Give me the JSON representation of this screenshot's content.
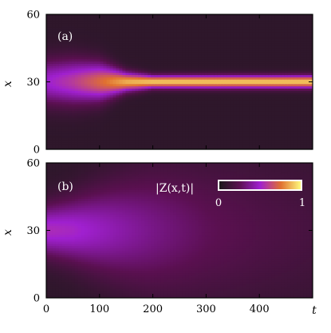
{
  "chart_data": [
    {
      "type": "heatmap",
      "panel_label": "(a)",
      "xlabel": "t",
      "ylabel": "x",
      "xlim": [
        0,
        500
      ],
      "ylim": [
        0,
        60
      ],
      "x_ticks": [
        "0",
        "100",
        "200",
        "300",
        "400"
      ],
      "y_ticks": [
        "0",
        "30",
        "60"
      ],
      "show_x_tick_labels": false,
      "colormap": [
        "#1a1a1a",
        "#5a1050",
        "#a020d0",
        "#e07030",
        "#ffff80"
      ],
      "field": {
        "description_values": "max |Z| along x = 30 over time",
        "t": [
          0,
          50,
          100,
          150,
          200,
          300,
          400,
          500
        ],
        "peak_amplitude": [
          0.45,
          0.55,
          0.7,
          0.85,
          0.9,
          0.9,
          0.9,
          0.9
        ],
        "width_x": [
          7,
          7,
          6,
          3,
          2,
          2,
          2,
          2
        ],
        "center_x": 30
      }
    },
    {
      "type": "heatmap",
      "panel_label": "(b)",
      "xlabel": "t",
      "ylabel": "x",
      "xlim": [
        0,
        500
      ],
      "ylim": [
        0,
        60
      ],
      "x_ticks": [
        "0",
        "100",
        "200",
        "300",
        "400"
      ],
      "y_ticks": [
        "0",
        "30",
        "60"
      ],
      "show_x_tick_labels": true,
      "colormap": [
        "#1a1a1a",
        "#5a1050",
        "#a020d0",
        "#e07030",
        "#ffff80"
      ],
      "field": {
        "description_values": "max |Z| along x = 30 over time",
        "t": [
          0,
          50,
          100,
          150,
          200,
          300,
          400,
          500
        ],
        "peak_amplitude": [
          0.5,
          0.48,
          0.42,
          0.36,
          0.3,
          0.2,
          0.14,
          0.1
        ],
        "width_x": [
          8,
          10,
          13,
          16,
          19,
          22,
          24,
          25
        ],
        "center_x": 30
      },
      "colorbar": {
        "label": "|Z(x,t)|",
        "min_label": "0",
        "max_label": "1",
        "range": [
          0,
          1
        ]
      }
    }
  ]
}
